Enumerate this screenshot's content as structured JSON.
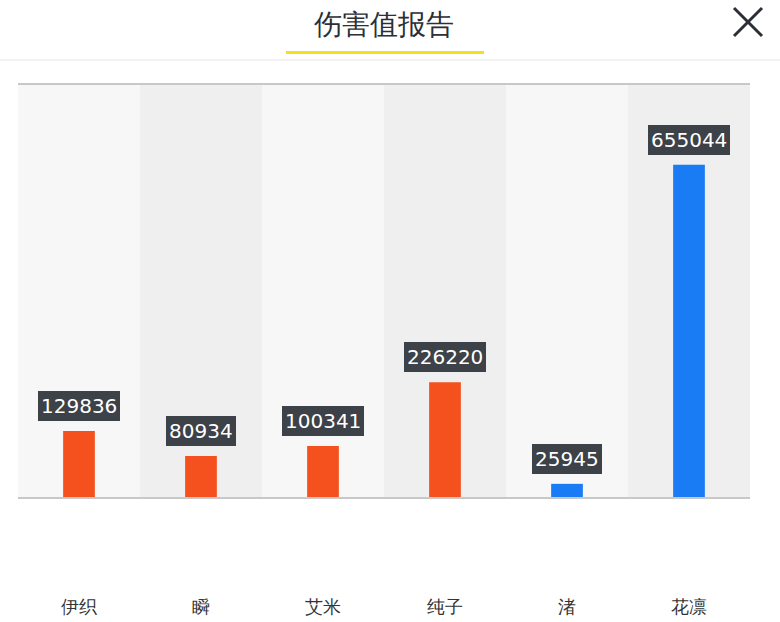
{
  "chart_data": {
    "type": "bar",
    "title": "伤害值报告",
    "categories": [
      "伊织",
      "瞬",
      "艾米",
      "纯子",
      "渚",
      "花凛"
    ],
    "values": [
      129836,
      80934,
      100341,
      226220,
      25945,
      655044
    ],
    "colors": [
      "#f4511e",
      "#f4511e",
      "#f4511e",
      "#f4511e",
      "#1a7cf5",
      "#1a7cf5"
    ],
    "ylim": [
      0,
      812000
    ],
    "yticks": [],
    "grid": false,
    "data_labels": true,
    "tick_labels": "x"
  }
}
